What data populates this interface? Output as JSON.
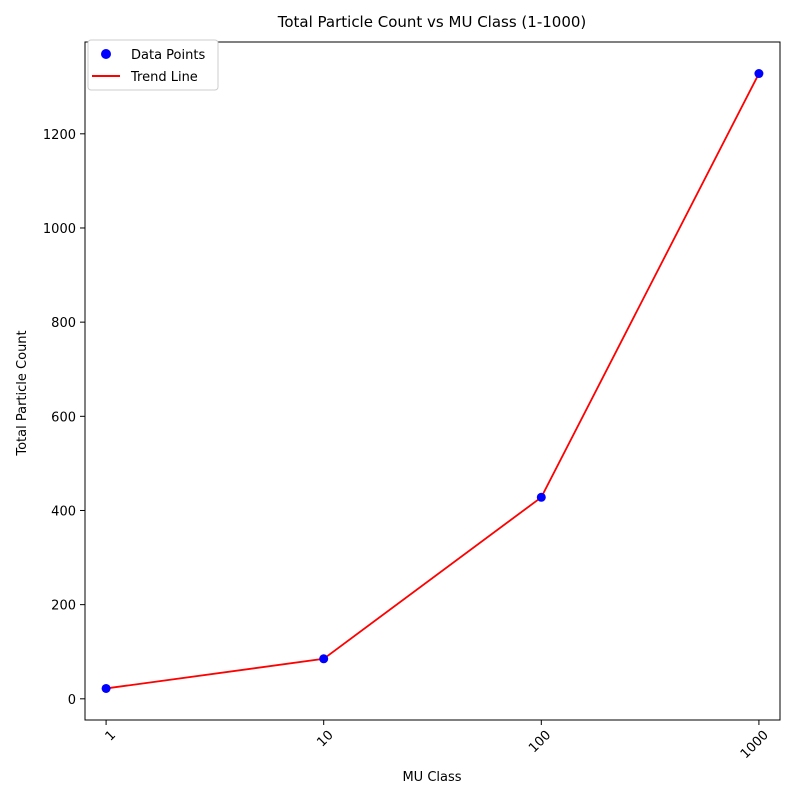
{
  "chart_data": {
    "type": "line",
    "title": "Total Particle Count vs MU Class (1-1000)",
    "xlabel": "MU Class",
    "ylabel": "Total Particle Count",
    "x_scale": "log",
    "categories": [
      "1",
      "10",
      "100",
      "1000"
    ],
    "x": [
      1,
      10,
      100,
      1000
    ],
    "xlim": [
      0.8,
      1250
    ],
    "ylim": [
      -45,
      1395
    ],
    "y_ticks": [
      0,
      200,
      400,
      600,
      800,
      1000,
      1200
    ],
    "x_tick_rotation": 45,
    "grid": false,
    "legend_position": "top-left",
    "series": [
      {
        "name": "Data Points",
        "kind": "scatter",
        "color": "#0000ff",
        "values": [
          22,
          85,
          428,
          1328
        ]
      },
      {
        "name": "Trend Line",
        "kind": "line",
        "color": "#ff0000",
        "values": [
          22,
          85,
          428,
          1328
        ]
      }
    ]
  }
}
